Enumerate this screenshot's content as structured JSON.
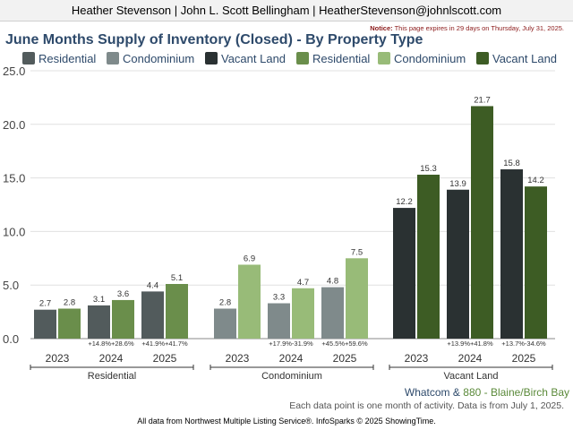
{
  "header": {
    "agent_line": "Heather Stevenson | John L. Scott Bellingham | HeatherStevenson@johnlscott.com",
    "notice_label": "Notice:",
    "notice_text": "This page expires in 29 days on Thursday, July 31, 2025."
  },
  "chart_data": {
    "type": "bar",
    "title": "June Months Supply of Inventory (Closed) - By Property Type",
    "ylim": [
      0,
      25
    ],
    "yticks": [
      "0.0",
      "5.0",
      "10.0",
      "15.0",
      "20.0",
      "25.0"
    ],
    "grid": true,
    "legend_position": "top",
    "legend": [
      {
        "name": "Residential",
        "color": "#525b5c"
      },
      {
        "name": "Condominium",
        "color": "#7f8a8b"
      },
      {
        "name": "Vacant Land",
        "color": "#2a3132"
      },
      {
        "name": "Residential",
        "color": "#6a8e4b"
      },
      {
        "name": "Condominium",
        "color": "#98bb78"
      },
      {
        "name": "Vacant Land",
        "color": "#3d5c24"
      }
    ],
    "groups": [
      {
        "name": "Residential",
        "years": [
          "2023",
          "2024",
          "2025"
        ],
        "area1": [
          2.7,
          3.1,
          4.4
        ],
        "area2": [
          2.8,
          3.6,
          5.1
        ],
        "area1_labels": [
          "2.7",
          "3.1",
          "4.4"
        ],
        "area2_labels": [
          "2.8",
          "3.6",
          "5.1"
        ],
        "changes": [
          "",
          "+14.8%+28.6%",
          "+41.9%+41.7%"
        ],
        "colors": [
          "#525b5c",
          "#6a8e4b"
        ]
      },
      {
        "name": "Condominium",
        "years": [
          "2023",
          "2024",
          "2025"
        ],
        "area1": [
          2.8,
          3.3,
          4.8
        ],
        "area2": [
          6.9,
          4.7,
          7.5
        ],
        "area1_labels": [
          "2.8",
          "3.3",
          "4.8"
        ],
        "area2_labels": [
          "6.9",
          "4.7",
          "7.5"
        ],
        "changes": [
          "",
          "+17.9%-31.9%",
          "+45.5%+59.6%"
        ],
        "colors": [
          "#7f8a8b",
          "#98bb78"
        ]
      },
      {
        "name": "Vacant Land",
        "years": [
          "2023",
          "2024",
          "2025"
        ],
        "area1": [
          12.2,
          13.9,
          15.8
        ],
        "area2": [
          15.3,
          21.7,
          14.2
        ],
        "area1_labels": [
          "12.2",
          "13.9",
          "15.8"
        ],
        "area2_labels": [
          "15.3",
          "21.7",
          "14.2"
        ],
        "changes": [
          "",
          "+13.9%+41.8%",
          "+13.7%-34.6%"
        ],
        "colors": [
          "#2a3132",
          "#3d5c24"
        ]
      }
    ]
  },
  "footer": {
    "area1": "Whatcom",
    "amp": "&",
    "area2": "880 - Blaine/Birch Bay",
    "note": "Each data point is one month of activity. Data is from July 1, 2025.",
    "source": "All data from Northwest Multiple Listing Service®. InfoSparks © 2025 ShowingTime."
  }
}
